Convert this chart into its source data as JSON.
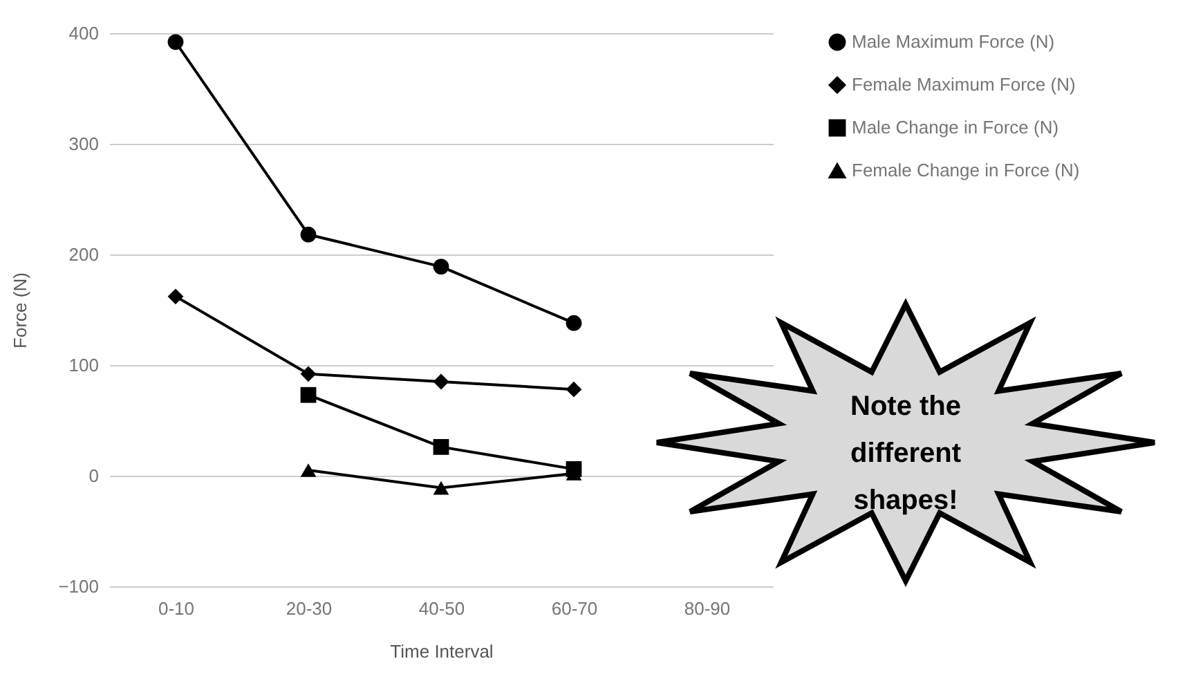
{
  "chart_data": {
    "type": "line",
    "xlabel": "Time Interval",
    "ylabel": "Force (N)",
    "categories": [
      "0-10",
      "20-30",
      "40-50",
      "60-70",
      "80-90"
    ],
    "series": [
      {
        "name": "Male Maximum Force (N)",
        "color": "#000000",
        "marker": "circle",
        "values": [
          392,
          218,
          189,
          138,
          null
        ]
      },
      {
        "name": "Female Maximum Force (N)",
        "color": "#000000",
        "marker": "diamond",
        "values": [
          162,
          92,
          85,
          78,
          null
        ]
      },
      {
        "name": "Male Change in Force (N)",
        "color": "#000000",
        "marker": "square",
        "values": [
          null,
          73,
          26,
          6,
          null
        ]
      },
      {
        "name": "Female Change in Force (N)",
        "color": "#000000",
        "marker": "triangle",
        "values": [
          null,
          5,
          -11,
          2,
          null
        ]
      }
    ],
    "ylim": [
      -100,
      400
    ],
    "yticks": [
      -100,
      0,
      100,
      200,
      300,
      400
    ],
    "grid": "y",
    "legend": "top right",
    "line_style": "solid",
    "annotations": [
      "Note the different shapes!"
    ]
  }
}
